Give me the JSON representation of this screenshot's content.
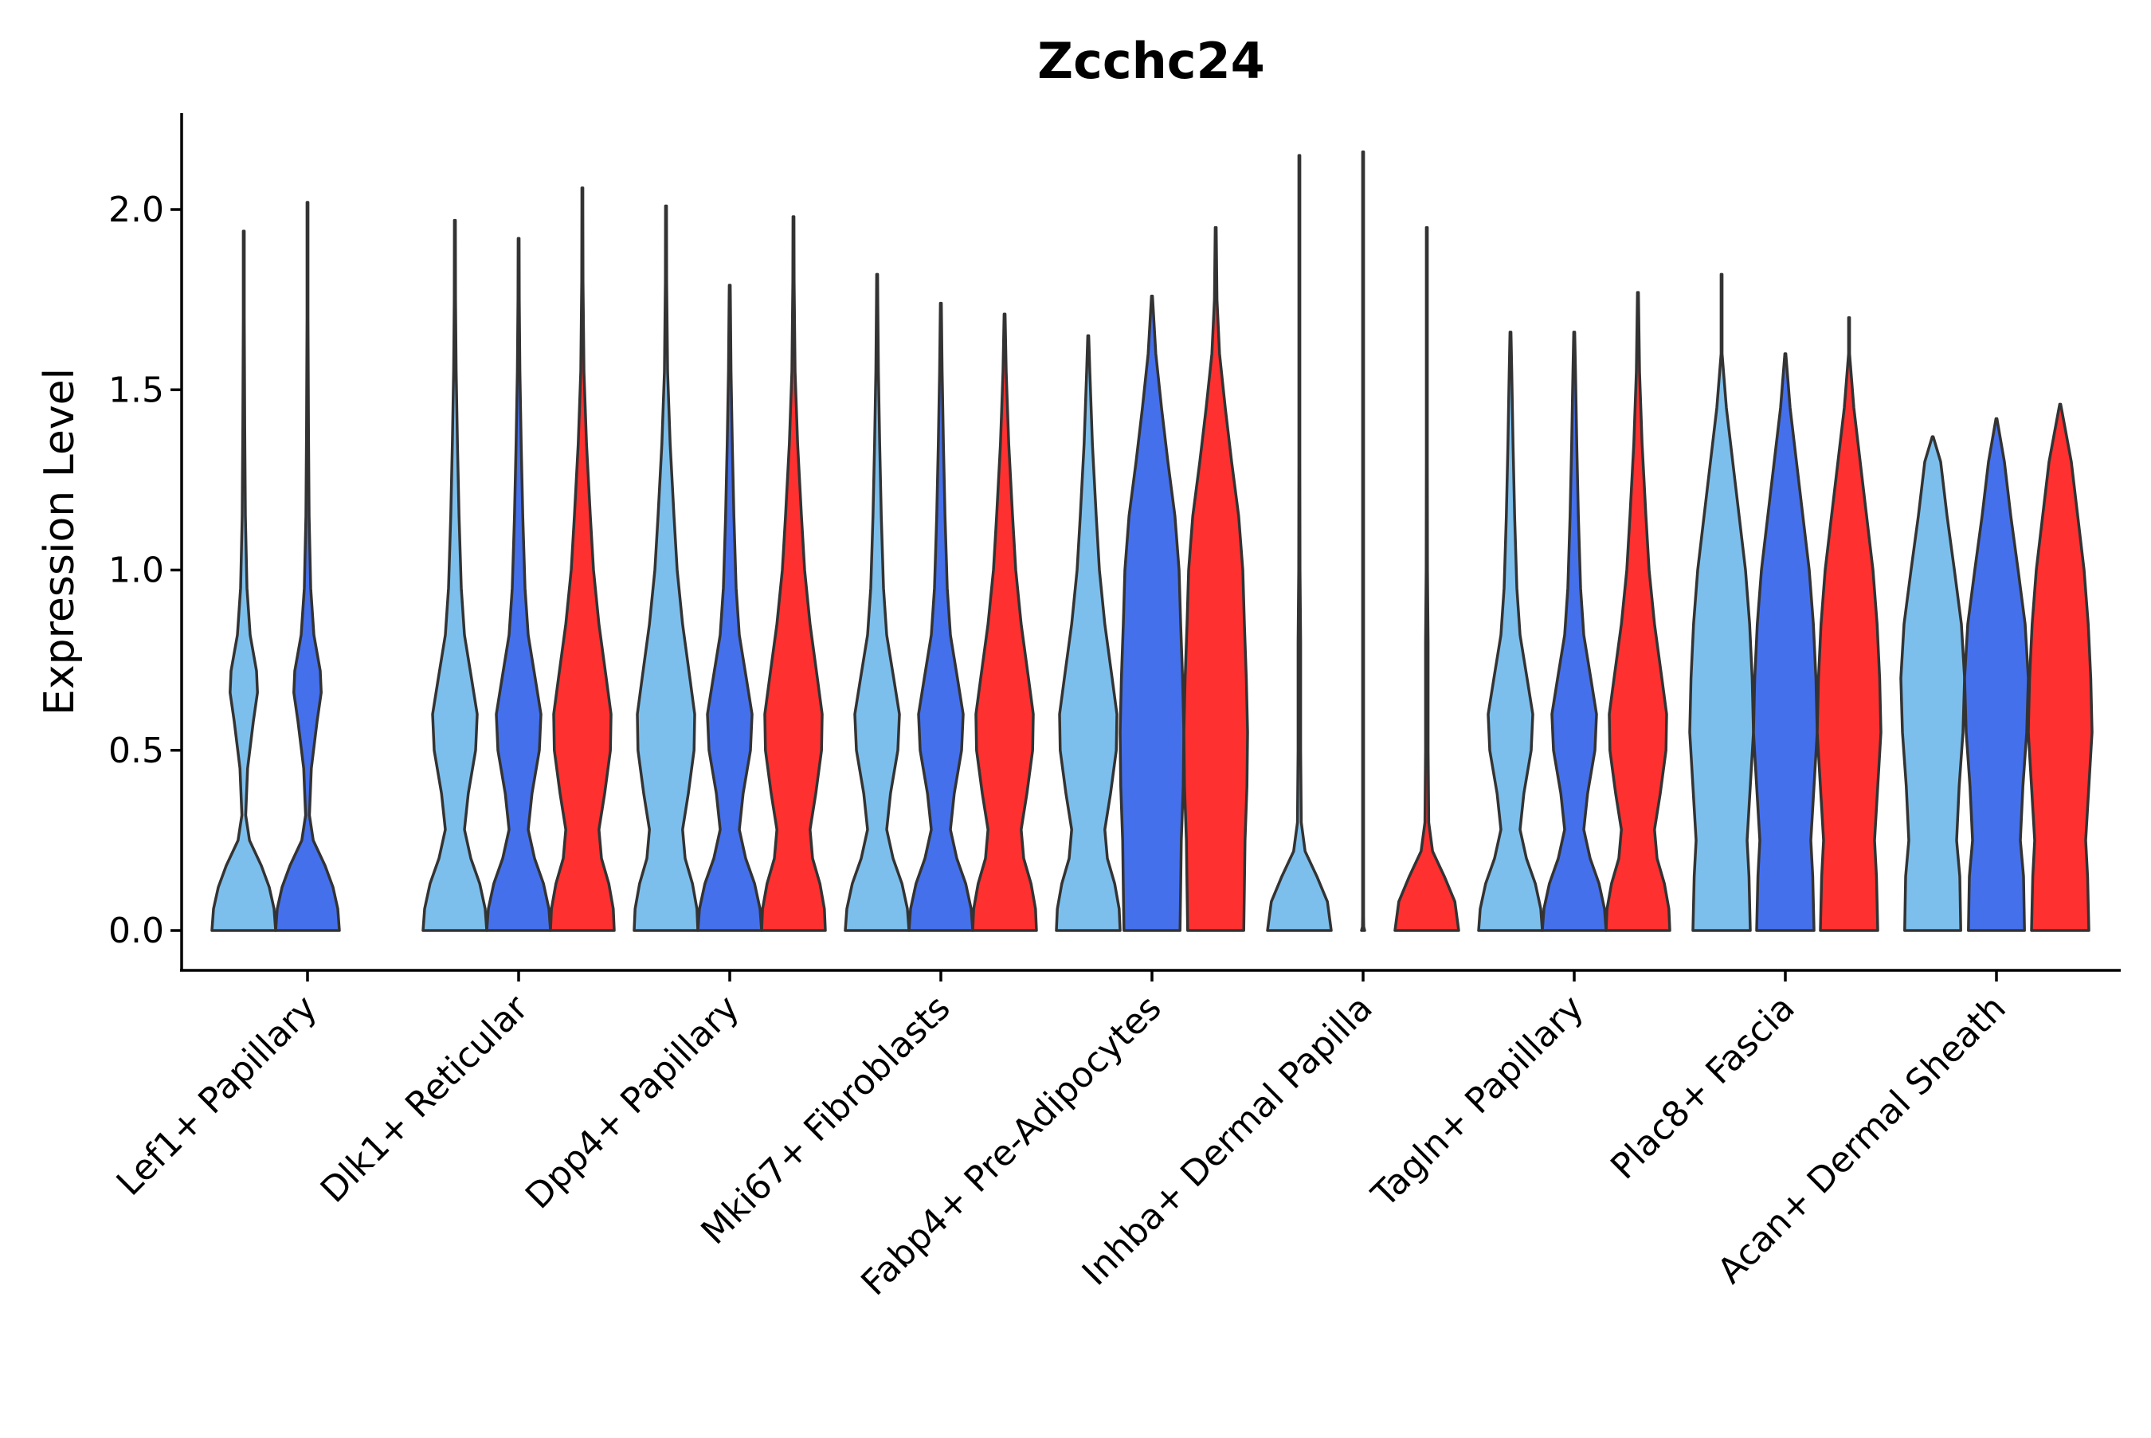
{
  "chart_data": {
    "type": "violin",
    "title": "Zcchc24",
    "xlabel": "",
    "ylabel": "Expression Level",
    "ylim": [
      -0.11,
      2.27
    ],
    "yticks": [
      0.0,
      0.5,
      1.0,
      1.5,
      2.0
    ],
    "ytick_labels": [
      "0.0",
      "0.5",
      "1.0",
      "1.5",
      "2.0"
    ],
    "grid": false,
    "legend": "none",
    "categories": [
      "Lef1+ Papillary",
      "Dlk1+ Reticular",
      "Dpp4+ Papillary",
      "Mki67+ Fibroblasts",
      "Fabp4+ Pre-Adipocytes",
      "Inhba+ Dermal Papilla",
      "Tagln+ Papillary",
      "Plac8+ Fascia",
      "Acan+ Dermal Sheath"
    ],
    "series": [
      {
        "name": "group1",
        "color": "#7DBFEC",
        "max": [
          1.94,
          1.97,
          2.01,
          1.82,
          1.65,
          2.15,
          1.66,
          1.82,
          1.37
        ]
      },
      {
        "name": "group2",
        "color": "#4570EC",
        "max": [
          2.02,
          1.92,
          1.79,
          1.74,
          1.76,
          2.16,
          1.66,
          1.6,
          1.42
        ]
      },
      {
        "name": "group3",
        "color": "#FF3030",
        "max": [
          null,
          2.06,
          1.98,
          1.71,
          1.95,
          1.95,
          1.77,
          1.7,
          1.46
        ]
      }
    ]
  }
}
